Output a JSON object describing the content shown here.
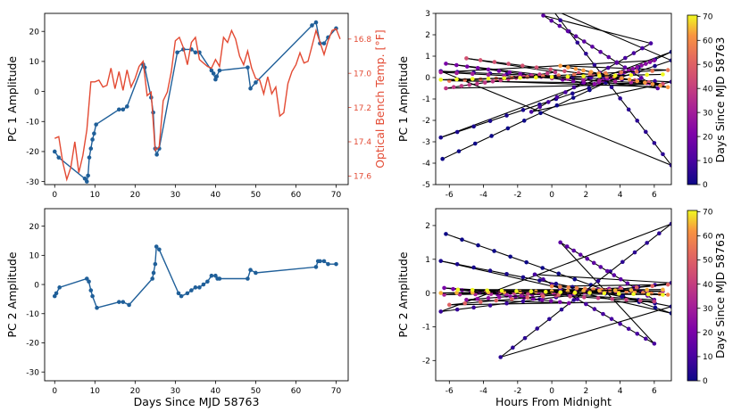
{
  "chart_data": [
    {
      "type": "line",
      "panel": "top-left",
      "ylabel": "PC 1 Amplitude",
      "xlim": [
        -2.5,
        73
      ],
      "ylim": [
        -31,
        26
      ],
      "xticks": [
        0,
        10,
        20,
        30,
        40,
        50,
        60,
        70
      ],
      "yticks": [
        -30,
        -20,
        -10,
        0,
        10,
        20
      ],
      "secondary_axis": {
        "label": "Optical Bench Temp. [°F]",
        "color": "#e34a33",
        "ticks": [
          "16.8",
          "17.0",
          "17.2",
          "17.4",
          "17.6"
        ],
        "inverted": true,
        "range": [
          16.65,
          17.65
        ]
      },
      "series": [
        {
          "name": "PC 1",
          "color": "#1f5f99",
          "markers": true,
          "x": [
            0,
            1,
            7.5,
            8,
            8.3,
            8.6,
            9.0,
            9.4,
            9.8,
            10.3,
            16,
            17,
            18,
            22,
            22.4,
            24,
            24.5,
            25,
            25.4,
            26,
            30.5,
            32,
            34,
            35,
            36,
            39,
            39.5,
            40,
            40.3,
            41,
            48,
            48.7,
            50,
            64,
            65,
            66,
            67,
            68,
            70
          ],
          "y": [
            -20,
            -22,
            -29,
            -30,
            -28,
            -22,
            -19,
            -16,
            -14,
            -11,
            -6,
            -6,
            -5,
            9,
            8,
            -2,
            -7,
            -19,
            -21,
            -19,
            13,
            14,
            14,
            13,
            13,
            7,
            6,
            4,
            5,
            7,
            8,
            1,
            3,
            22,
            23,
            16,
            16,
            18,
            21
          ]
        },
        {
          "name": "Optical Bench Temp.",
          "color": "#e34a33",
          "markers": false,
          "axis": "secondary",
          "x": [
            0,
            1,
            2,
            3,
            4,
            5,
            6,
            7,
            8,
            9,
            10,
            11,
            12,
            13,
            14,
            15,
            16,
            17,
            18,
            19,
            20,
            21,
            22,
            23,
            24,
            25,
            26,
            27,
            28,
            29,
            30,
            31,
            32,
            33,
            34,
            35,
            36,
            37,
            38,
            39,
            40,
            41,
            42,
            43,
            44,
            45,
            46,
            47,
            48,
            49,
            50,
            51,
            52,
            53,
            54,
            55,
            56,
            57,
            58,
            59,
            60,
            61,
            62,
            63,
            64,
            65,
            66,
            67,
            68,
            69,
            70,
            71
          ],
          "y": [
            17.38,
            17.37,
            17.52,
            17.62,
            17.55,
            17.4,
            17.58,
            17.48,
            17.33,
            17.05,
            17.05,
            17.04,
            17.08,
            17.07,
            16.97,
            17.09,
            16.99,
            17.1,
            16.98,
            17.08,
            17.03,
            16.96,
            16.93,
            17.13,
            17.11,
            17.45,
            17.43,
            17.16,
            17.11,
            16.99,
            16.81,
            16.79,
            16.85,
            16.95,
            16.82,
            16.79,
            16.92,
            16.94,
            16.96,
            16.97,
            16.92,
            16.96,
            16.79,
            16.82,
            16.75,
            16.8,
            16.9,
            16.95,
            16.87,
            16.97,
            17.03,
            17.04,
            17.12,
            17.02,
            17.12,
            17.08,
            17.25,
            17.23,
            17.06,
            16.99,
            16.95,
            16.88,
            16.94,
            16.93,
            16.84,
            16.75,
            16.82,
            16.89,
            16.81,
            16.75,
            16.74,
            16.8
          ]
        }
      ]
    },
    {
      "type": "line",
      "panel": "bottom-left",
      "xlabel": "Days Since MJD 58763",
      "ylabel": "PC 2 Amplitude",
      "xlim": [
        -2.5,
        73
      ],
      "ylim": [
        -33,
        26
      ],
      "xticks": [
        0,
        10,
        20,
        30,
        40,
        50,
        60,
        70
      ],
      "yticks": [
        -30,
        -20,
        -10,
        0,
        10,
        20
      ],
      "series": [
        {
          "name": "PC 2",
          "color": "#1f5f99",
          "markers": true,
          "x": [
            0,
            0.4,
            1.2,
            8,
            8.5,
            9.0,
            9.4,
            10.5,
            16,
            17,
            18.5,
            24.3,
            24.6,
            25,
            25.3,
            26,
            30.8,
            31.5,
            33,
            34,
            35,
            36,
            37,
            38,
            39,
            40,
            40.5,
            41,
            48,
            48.7,
            50,
            65,
            65.5,
            66,
            67,
            68,
            70
          ],
          "y": [
            -4,
            -3,
            -1,
            2,
            1,
            -2,
            -4,
            -8,
            -6,
            -6,
            -7,
            2,
            4,
            7,
            13,
            12,
            -3,
            -4,
            -3,
            -2,
            -1,
            -1,
            0,
            1,
            3,
            3,
            2,
            2,
            2,
            5,
            4,
            6,
            8,
            8,
            8,
            7,
            7
          ]
        }
      ]
    },
    {
      "type": "scatter",
      "panel": "top-right",
      "ylabel": "PC 1 Amplitude",
      "xlim": [
        -6.8,
        7
      ],
      "ylim": [
        -5,
        3
      ],
      "xticks": [
        -6,
        -4,
        -2,
        0,
        2,
        4,
        6
      ],
      "yticks": [
        -5,
        -4,
        -3,
        -2,
        -1,
        0,
        1,
        2,
        3
      ],
      "colorbar": {
        "label": "Days Since MJD 58763",
        "ticks": [
          0,
          10,
          20,
          30,
          40,
          50,
          60,
          70
        ],
        "cmap": "plasma"
      },
      "segments": [
        {
          "day": 0,
          "x": [
            -6.4,
            7
          ],
          "y": [
            -3.8,
            1.2
          ]
        },
        {
          "day": 2,
          "x": [
            -6.5,
            7
          ],
          "y": [
            -2.8,
            0.8
          ]
        },
        {
          "day": 5,
          "x": [
            0,
            7
          ],
          "y": [
            3.2,
            -4.1
          ]
        },
        {
          "day": 7,
          "x": [
            -6.5,
            7
          ],
          "y": [
            0.3,
            -0.2
          ]
        },
        {
          "day": 10,
          "x": [
            -1.2,
            5.8
          ],
          "y": [
            -1.6,
            1.6
          ]
        },
        {
          "day": 14,
          "x": [
            -0.5,
            6.2
          ],
          "y": [
            2.9,
            -0.5
          ]
        },
        {
          "day": 20,
          "x": [
            -6.2,
            2.5
          ],
          "y": [
            0.65,
            -0.3
          ]
        },
        {
          "day": 24,
          "x": [
            2.5,
            6
          ],
          "y": [
            -0.3,
            0.8
          ]
        },
        {
          "day": 30,
          "x": [
            -6.5,
            6.5
          ],
          "y": [
            0.25,
            -0.3
          ]
        },
        {
          "day": 38,
          "x": [
            -6.2,
            0.2
          ],
          "y": [
            -0.5,
            0.25
          ]
        },
        {
          "day": 45,
          "x": [
            -5,
            6.5
          ],
          "y": [
            0.9,
            -0.3
          ]
        },
        {
          "day": 55,
          "x": [
            -6,
            6.8
          ],
          "y": [
            -0.15,
            0.35
          ]
        },
        {
          "day": 62,
          "x": [
            0.5,
            6.8
          ],
          "y": [
            0.55,
            -0.45
          ]
        },
        {
          "day": 70,
          "x": [
            -6.5,
            6.5
          ],
          "y": [
            -0.1,
            0.15
          ]
        }
      ]
    },
    {
      "type": "scatter",
      "panel": "bottom-right",
      "xlabel": "Hours From Midnight",
      "ylabel": "PC 2 Amplitude",
      "xlim": [
        -6.8,
        7
      ],
      "ylim": [
        -2.6,
        2.5
      ],
      "xticks": [
        -6,
        -4,
        -2,
        0,
        2,
        4,
        6
      ],
      "yticks": [
        -2,
        -1,
        0,
        1,
        2
      ],
      "colorbar": {
        "label": "Days Since MJD 58763",
        "ticks": [
          0,
          10,
          20,
          30,
          40,
          50,
          60,
          70
        ],
        "cmap": "plasma"
      },
      "segments": [
        {
          "day": 0,
          "x": [
            -6.2,
            7
          ],
          "y": [
            1.75,
            -0.6
          ]
        },
        {
          "day": 2,
          "x": [
            -6.5,
            7
          ],
          "y": [
            0.95,
            -0.4
          ]
        },
        {
          "day": 5,
          "x": [
            -3,
            7
          ],
          "y": [
            -1.9,
            2.05
          ]
        },
        {
          "day": 7,
          "x": [
            -6.5,
            7
          ],
          "y": [
            -0.55,
            0.3
          ]
        },
        {
          "day": 10,
          "x": [
            -1.0,
            6
          ],
          "y": [
            0.55,
            -1.5
          ]
        },
        {
          "day": 14,
          "x": [
            0.5,
            6
          ],
          "y": [
            1.5,
            -0.2
          ]
        },
        {
          "day": 20,
          "x": [
            -6.3,
            1
          ],
          "y": [
            0.15,
            -0.3
          ]
        },
        {
          "day": 25,
          "x": [
            -5,
            4
          ],
          "y": [
            -0.2,
            0.15
          ]
        },
        {
          "day": 32,
          "x": [
            -6.3,
            6.5
          ],
          "y": [
            -0.05,
            0.05
          ]
        },
        {
          "day": 40,
          "x": [
            -5.5,
            6
          ],
          "y": [
            0.1,
            -0.25
          ]
        },
        {
          "day": 50,
          "x": [
            -6,
            6.8
          ],
          "y": [
            -0.35,
            0.25
          ]
        },
        {
          "day": 58,
          "x": [
            0,
            6.8
          ],
          "y": [
            0.2,
            -0.05
          ]
        },
        {
          "day": 64,
          "x": [
            -6.5,
            6.5
          ],
          "y": [
            0.0,
            0.1
          ]
        },
        {
          "day": 70,
          "x": [
            -5.5,
            6.5
          ],
          "y": [
            0.1,
            -0.05
          ]
        }
      ]
    }
  ]
}
